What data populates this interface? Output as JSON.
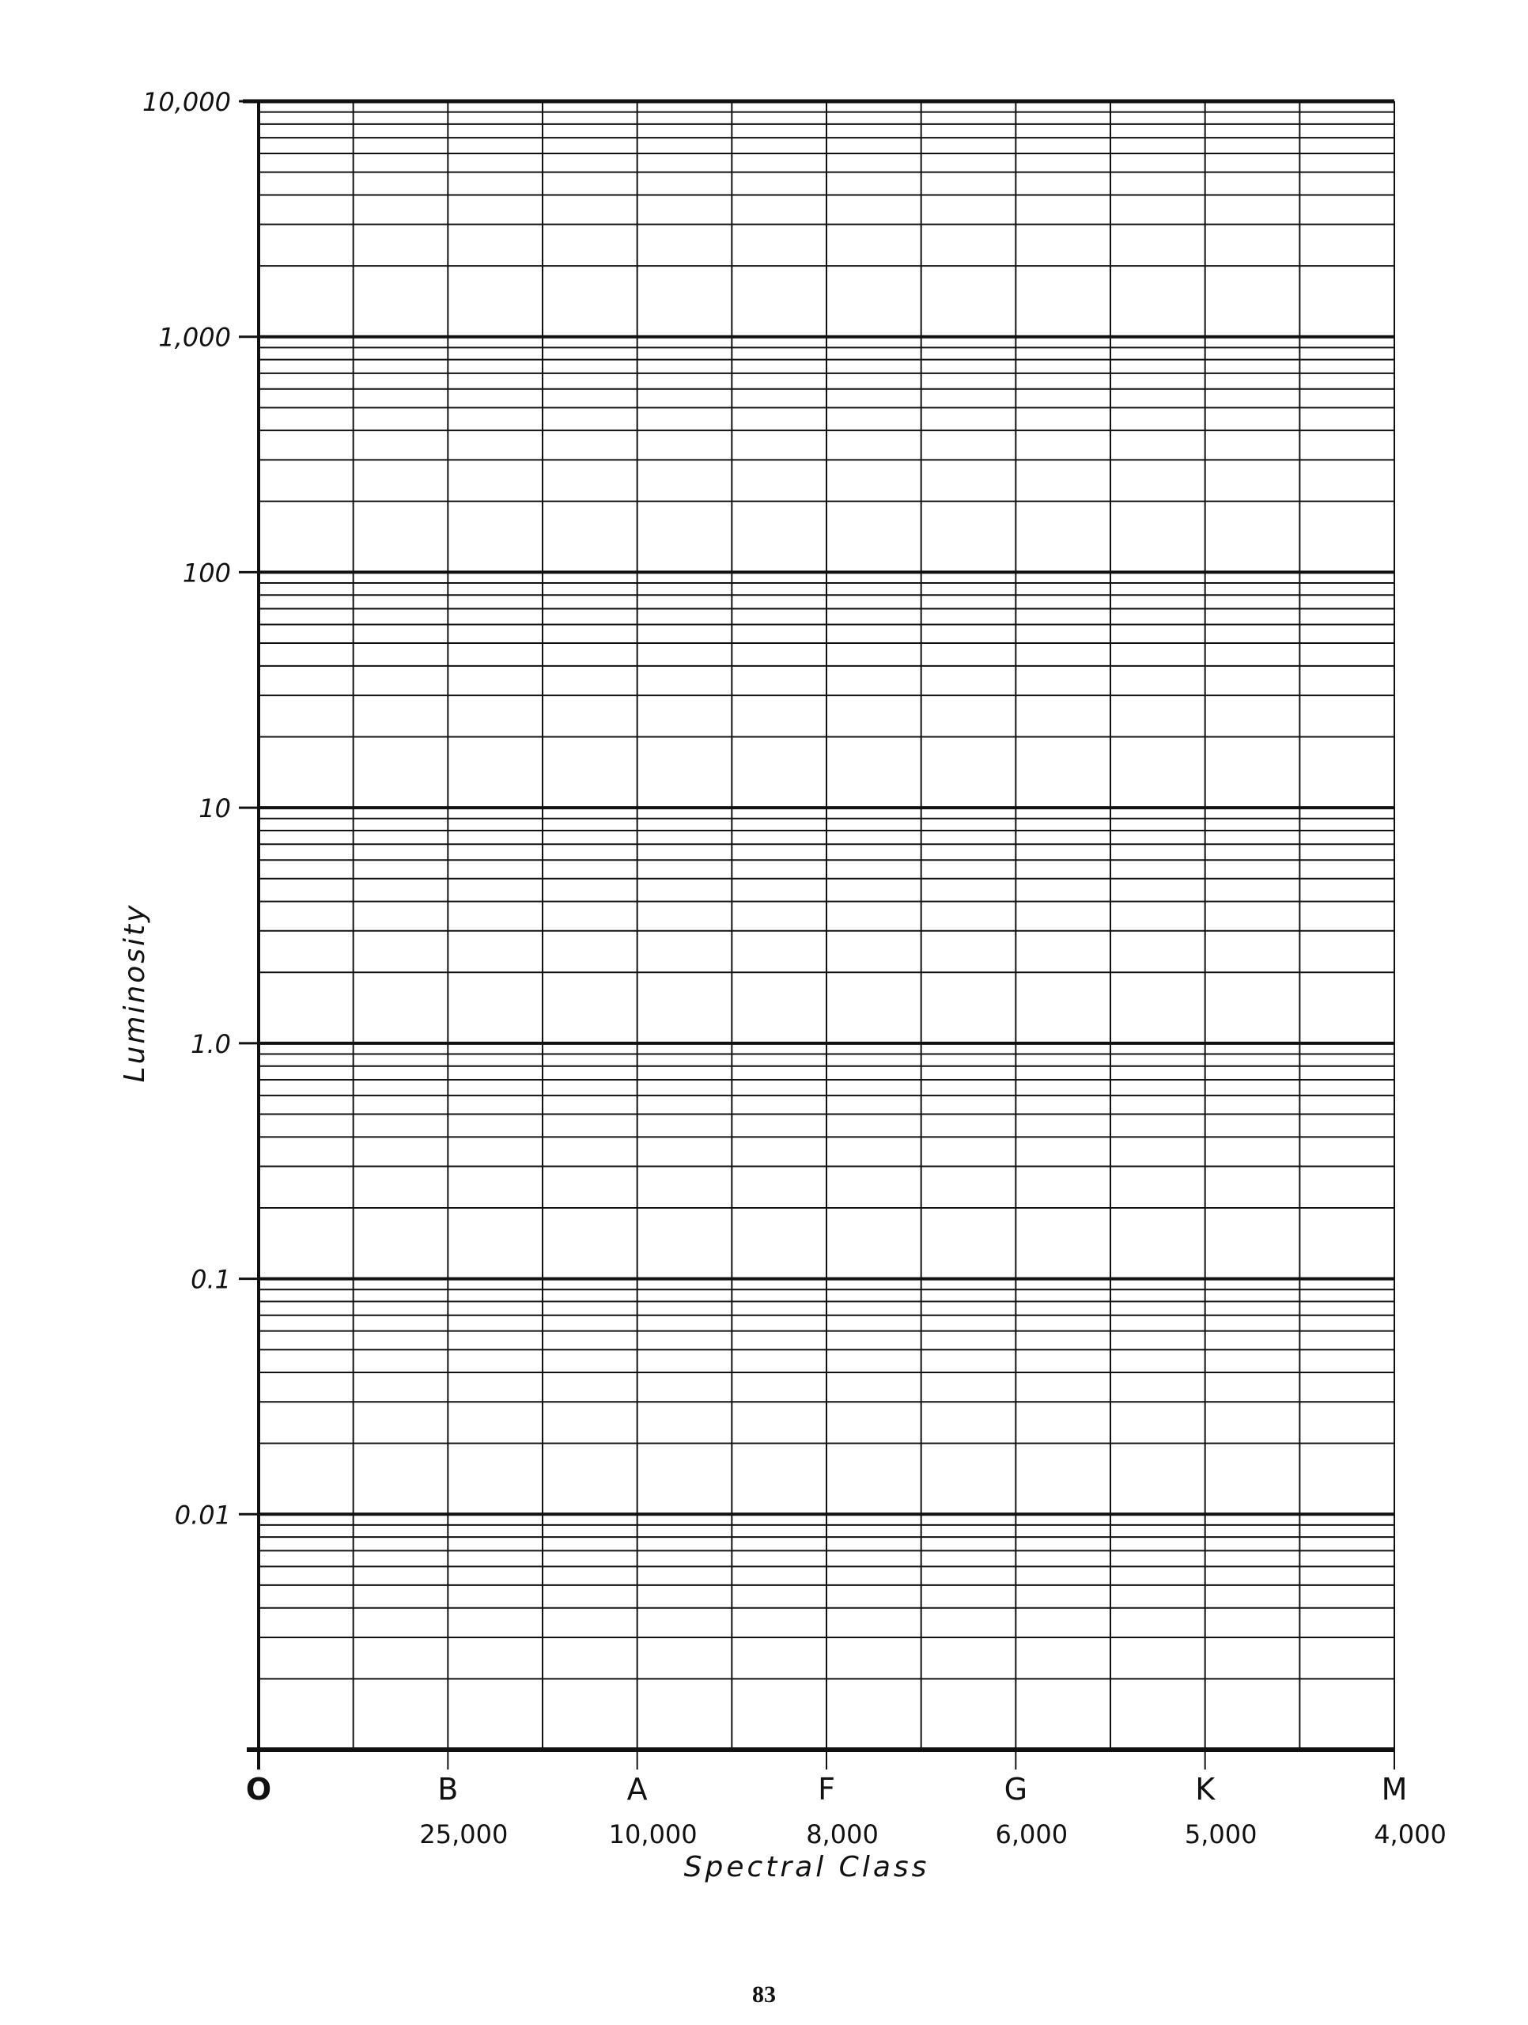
{
  "chart_data": {
    "type": "scatter",
    "title": "",
    "xlabel": "Spectral Class",
    "ylabel": "Luminosity",
    "y_scale": "log",
    "ylim": [
      0.001,
      10000
    ],
    "y_tick_labels": [
      "10,000",
      "1,000",
      "100",
      "10",
      "1.0",
      "0.1",
      "0.01"
    ],
    "y_tick_values": [
      10000,
      1000,
      100,
      10,
      1,
      0.1,
      0.01
    ],
    "x_categories": [
      "O",
      "B",
      "A",
      "F",
      "G",
      "K",
      "M"
    ],
    "x_temperatures": [
      "",
      "25,000",
      "10,000",
      "8,000",
      "6,000",
      "5,000",
      "4,000"
    ],
    "grid": true,
    "series": []
  },
  "page_number": "83",
  "colors": {
    "ink": "#111111",
    "paper": "#ffffff"
  }
}
